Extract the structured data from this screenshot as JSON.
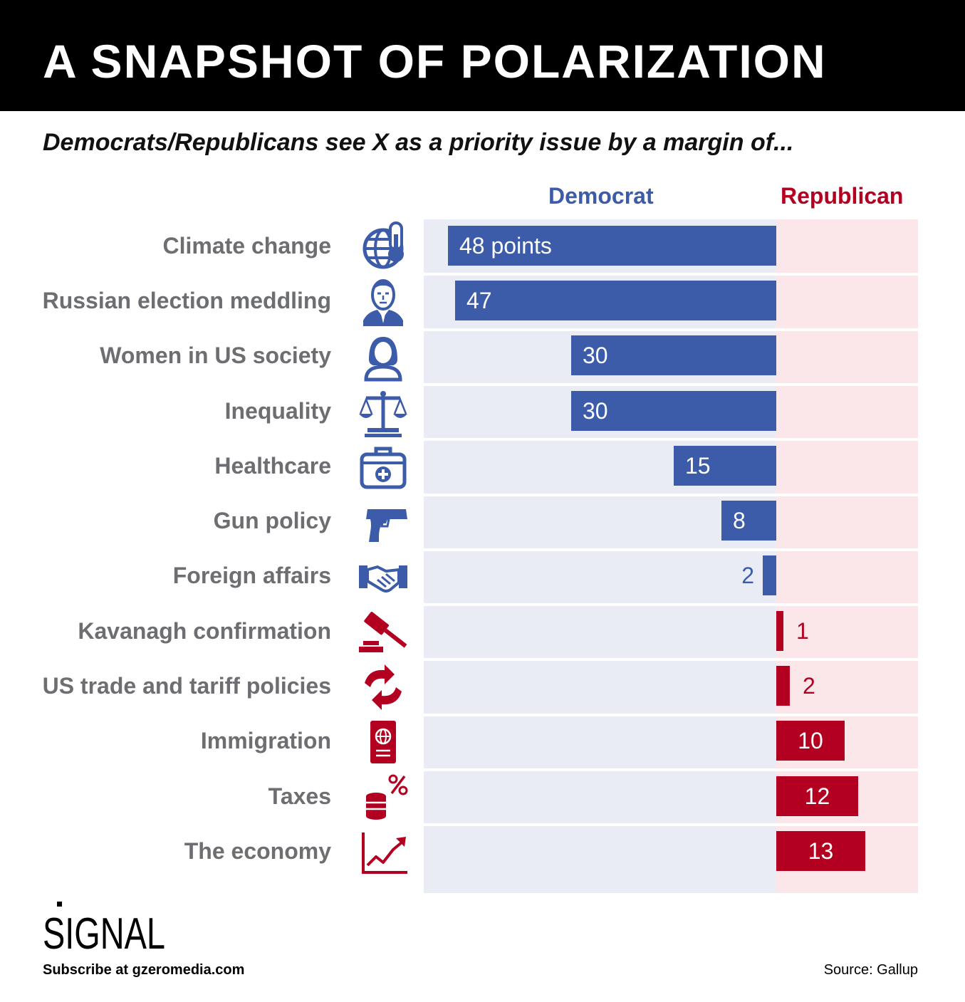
{
  "header": {
    "title": "A SNAPSHOT OF POLARIZATION",
    "subtitle": "Democrats/Republicans see X as a priority issue by a margin of..."
  },
  "colors": {
    "democrat_bar": "#3c5ba8",
    "republican_bar": "#b40020",
    "democrat_background": "#eaecf5",
    "republican_background": "#fbe6e9",
    "category_text": "#6d6e71"
  },
  "chart_data": {
    "type": "bar",
    "orientation": "horizontal-diverging",
    "value_unit": "points",
    "categories": [
      "Climate change",
      "Russian election meddling",
      "Women in US society",
      "Inequality",
      "Healthcare",
      "Gun policy",
      "Foreign affairs",
      "Kavanagh confirmation",
      "US trade and tariff policies",
      "Immigration",
      "Taxes",
      "The economy"
    ],
    "series": [
      {
        "name": "Democrat",
        "values": [
          48,
          47,
          30,
          30,
          15,
          8,
          2,
          null,
          null,
          null,
          null,
          null
        ]
      },
      {
        "name": "Republican",
        "values": [
          null,
          null,
          null,
          null,
          null,
          null,
          null,
          1,
          2,
          10,
          12,
          13
        ]
      }
    ],
    "data_labels": [
      "48 points",
      "47",
      "30",
      "30",
      "15",
      "8",
      "2",
      "1",
      "2",
      "10",
      "12",
      "13"
    ],
    "icons": [
      "globe-thermometer-icon",
      "putin-portrait-icon",
      "woman-icon",
      "scales-icon",
      "medical-kit-icon",
      "pistol-icon",
      "handshake-icon",
      "gavel-icon",
      "trade-arrows-icon",
      "passport-icon",
      "coins-percent-icon",
      "rising-chart-icon"
    ],
    "legend": {
      "left": "Democrat",
      "right": "Republican",
      "placement": "top"
    },
    "grid": false
  },
  "footer": {
    "logo_text": "SIGNAL",
    "subscribe": "Subscribe at gzeromedia.com",
    "source": "Source: Gallup"
  }
}
